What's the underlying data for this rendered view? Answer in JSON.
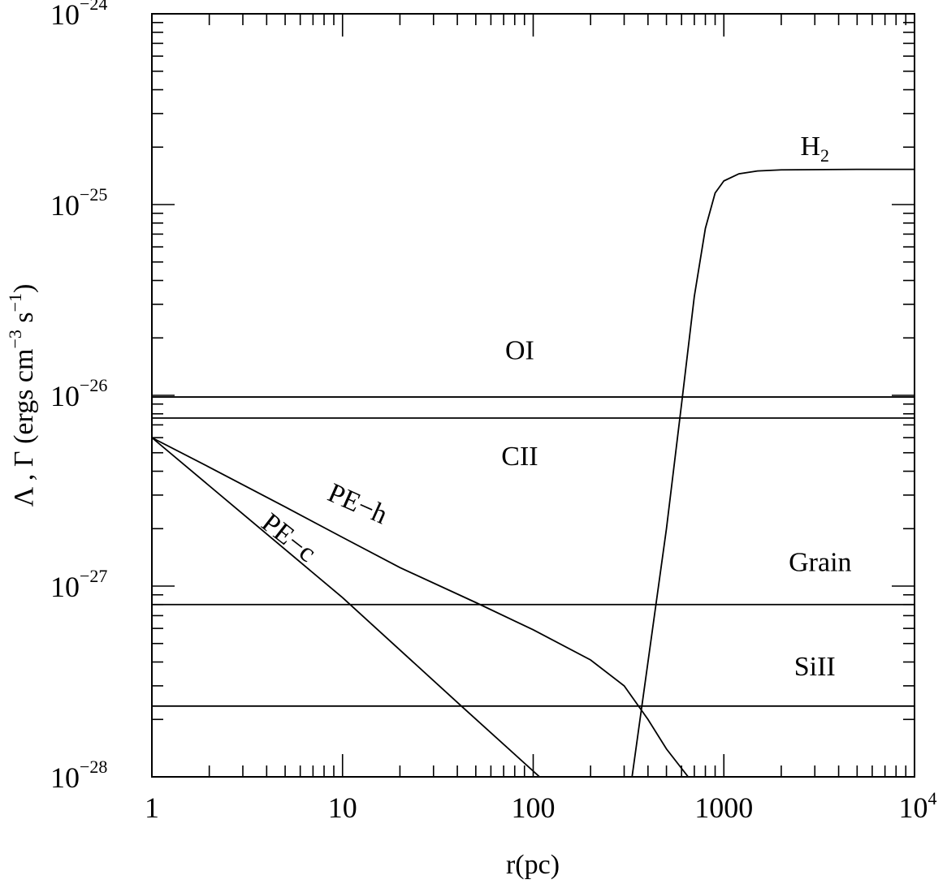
{
  "chart_data": {
    "type": "line",
    "x_scale": "log",
    "y_scale": "log",
    "xlim": [
      1,
      10000
    ],
    "ylim": [
      1e-28,
      1e-24
    ],
    "grid": false,
    "legend": "none",
    "xlabel": "r(pc)",
    "ylabel_parts": {
      "main": "Λ , Γ (ergs cm",
      "exp1": "−3",
      "mid": " s",
      "exp2": "−1",
      "end": ")"
    },
    "x_ticks": [
      {
        "value": 1,
        "label": "1",
        "exp": ""
      },
      {
        "value": 10,
        "label": "10",
        "exp": ""
      },
      {
        "value": 100,
        "label": "100",
        "exp": ""
      },
      {
        "value": 1000,
        "label": "1000",
        "exp": ""
      },
      {
        "value": 10000,
        "label": "10",
        "exp": "4"
      }
    ],
    "y_ticks": [
      {
        "value": 1e-28,
        "label": "10",
        "exp": "−28"
      },
      {
        "value": 1e-27,
        "label": "10",
        "exp": "−27"
      },
      {
        "value": 1e-26,
        "label": "10",
        "exp": "−26"
      },
      {
        "value": 1e-25,
        "label": "10",
        "exp": "−25"
      },
      {
        "value": 1e-24,
        "label": "10",
        "exp": "−24"
      }
    ],
    "series": [
      {
        "name": "OI",
        "sub": "",
        "points": [
          [
            1,
            9.8e-27
          ],
          [
            10000,
            9.8e-27
          ]
        ]
      },
      {
        "name": "CII",
        "sub": "",
        "points": [
          [
            1,
            7.6e-27
          ],
          [
            10000,
            7.6e-27
          ]
        ]
      },
      {
        "name": "Grain",
        "sub": "",
        "points": [
          [
            1,
            8e-28
          ],
          [
            10000,
            8e-28
          ]
        ]
      },
      {
        "name": "SiII",
        "sub": "",
        "points": [
          [
            1,
            2.35e-28
          ],
          [
            10000,
            2.35e-28
          ]
        ]
      },
      {
        "name": "PE−h",
        "sub": "",
        "points": [
          [
            1,
            6e-27
          ],
          [
            2,
            4.2e-27
          ],
          [
            5,
            2.6e-27
          ],
          [
            10,
            1.8e-27
          ],
          [
            20,
            1.25e-27
          ],
          [
            50,
            8.2e-28
          ],
          [
            100,
            5.9e-28
          ],
          [
            200,
            4.1e-28
          ],
          [
            300,
            3e-28
          ],
          [
            400,
            2e-28
          ],
          [
            500,
            1.4e-28
          ],
          [
            650,
            1e-28
          ]
        ]
      },
      {
        "name": "PE−c",
        "sub": "",
        "points": [
          [
            1,
            6e-27
          ],
          [
            10,
            8.7e-28
          ],
          [
            42,
            2.35e-28
          ],
          [
            108,
            1e-28
          ]
        ]
      },
      {
        "name": "H",
        "sub": "2",
        "points": [
          [
            330,
            1e-28
          ],
          [
            400,
            4e-28
          ],
          [
            500,
            2e-27
          ],
          [
            600,
            9e-27
          ],
          [
            700,
            3.3e-26
          ],
          [
            800,
            7.5e-26
          ],
          [
            900,
            1.15e-25
          ],
          [
            1000,
            1.33e-25
          ],
          [
            1200,
            1.45e-25
          ],
          [
            1500,
            1.5e-25
          ],
          [
            2000,
            1.52e-25
          ],
          [
            5000,
            1.53e-25
          ],
          [
            10000,
            1.53e-25
          ]
        ]
      }
    ]
  }
}
